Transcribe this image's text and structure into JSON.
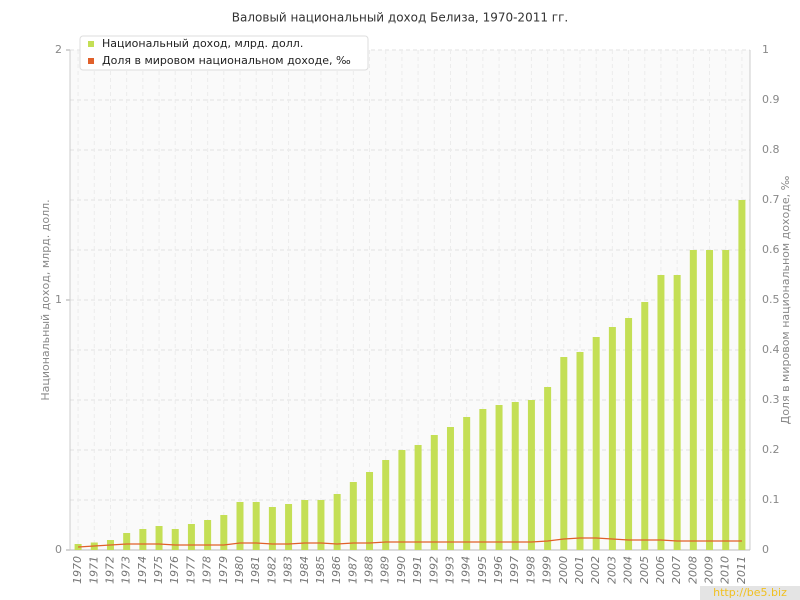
{
  "chart_data": {
    "type": "bar",
    "title": "Валовый национальный доход Белиза, 1970-2011 гг.",
    "y_label": "Национальный доход, млрд. долл.",
    "y2_label": "Доля в мировом национальном доходе, ‰",
    "watermark": "http://be5.biz",
    "categories": [
      "1970",
      "1971",
      "1972",
      "1973",
      "1974",
      "1975",
      "1976",
      "1977",
      "1978",
      "1979",
      "1980",
      "1981",
      "1982",
      "1983",
      "1984",
      "1985",
      "1986",
      "1987",
      "1988",
      "1989",
      "1990",
      "1991",
      "1992",
      "1993",
      "1994",
      "1995",
      "1996",
      "1997",
      "1998",
      "1999",
      "2000",
      "2001",
      "2002",
      "2003",
      "2004",
      "2005",
      "2006",
      "2007",
      "2008",
      "2009",
      "2010",
      "2011"
    ],
    "series": [
      {
        "name": "Национальный доход, млрд. долл.",
        "type": "bar",
        "color": "#c4df55",
        "values": [
          0.024,
          0.03,
          0.04,
          0.068,
          0.084,
          0.096,
          0.084,
          0.104,
          0.12,
          0.14,
          0.192,
          0.192,
          0.172,
          0.184,
          0.2,
          0.2,
          0.224,
          0.272,
          0.312,
          0.36,
          0.4,
          0.42,
          0.46,
          0.492,
          0.532,
          0.564,
          0.58,
          0.592,
          0.6,
          0.652,
          0.772,
          0.792,
          0.852,
          0.892,
          0.928,
          0.992,
          1.1,
          1.1,
          1.2,
          1.2,
          1.2,
          1.4
        ]
      },
      {
        "name": "Доля в мировом национальном доходе, ‰",
        "type": "line",
        "axis": "y2",
        "color": "#e0602a",
        "values": [
          0.006,
          0.008,
          0.01,
          0.012,
          0.012,
          0.012,
          0.01,
          0.01,
          0.01,
          0.01,
          0.014,
          0.014,
          0.012,
          0.012,
          0.014,
          0.014,
          0.012,
          0.014,
          0.014,
          0.016,
          0.016,
          0.016,
          0.016,
          0.016,
          0.016,
          0.016,
          0.016,
          0.016,
          0.016,
          0.018,
          0.022,
          0.024,
          0.024,
          0.022,
          0.02,
          0.02,
          0.02,
          0.018,
          0.018,
          0.018,
          0.018,
          0.018
        ]
      }
    ],
    "ylim": [
      0,
      2
    ],
    "yticks": [
      0,
      1,
      2
    ],
    "y2lim": [
      0,
      1
    ],
    "y2ticks": [
      0,
      0.1,
      0.2,
      0.3,
      0.4,
      0.5,
      0.6,
      0.7,
      0.8,
      0.9,
      1
    ],
    "grid": true,
    "legend": "top-left"
  }
}
